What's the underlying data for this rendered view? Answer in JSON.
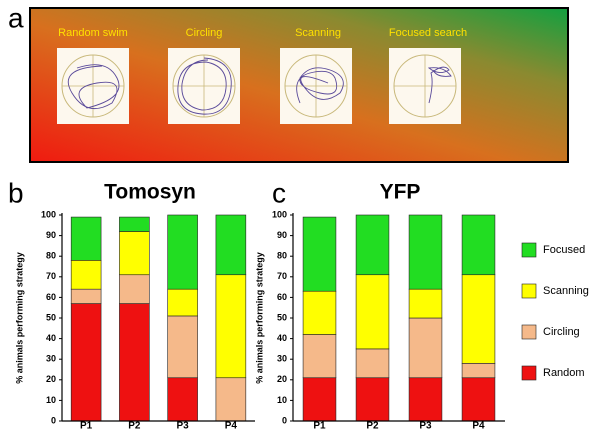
{
  "panel_a": {
    "label": "a",
    "strategies": [
      "Random swim",
      "Circling",
      "Scanning",
      "Focused search"
    ]
  },
  "chart_data": [
    {
      "type": "bar",
      "stacked": true,
      "panel_label": "b",
      "title": "Tomosyn",
      "y_label": "% animals performing strategy",
      "categories": [
        "P1",
        "P2",
        "P3",
        "P4"
      ],
      "series": [
        {
          "name": "Random",
          "color": "#ee1111",
          "values": [
            57,
            57,
            21,
            0
          ]
        },
        {
          "name": "Circling",
          "color": "#f5b98a",
          "values": [
            7,
            14,
            30,
            21
          ]
        },
        {
          "name": "Scanning",
          "color": "#ffff00",
          "values": [
            14,
            21,
            13,
            50
          ]
        },
        {
          "name": "Focused",
          "color": "#22dd22",
          "values": [
            21,
            7,
            36,
            29
          ]
        }
      ],
      "ylim": [
        0,
        100
      ],
      "yticks": [
        0,
        10,
        20,
        30,
        40,
        50,
        60,
        70,
        80,
        90,
        100
      ]
    },
    {
      "type": "bar",
      "stacked": true,
      "panel_label": "c",
      "title": "YFP",
      "y_label": "% animals performing strategy",
      "categories": [
        "P1",
        "P2",
        "P3",
        "P4"
      ],
      "series": [
        {
          "name": "Random",
          "color": "#ee1111",
          "values": [
            21,
            21,
            21,
            21
          ]
        },
        {
          "name": "Circling",
          "color": "#f5b98a",
          "values": [
            21,
            14,
            29,
            7
          ]
        },
        {
          "name": "Scanning",
          "color": "#ffff00",
          "values": [
            21,
            36,
            14,
            43
          ]
        },
        {
          "name": "Focused",
          "color": "#22dd22",
          "values": [
            36,
            29,
            36,
            29
          ]
        }
      ],
      "ylim": [
        0,
        100
      ],
      "yticks": [
        0,
        10,
        20,
        30,
        40,
        50,
        60,
        70,
        80,
        90,
        100
      ],
      "legend": "right"
    }
  ]
}
